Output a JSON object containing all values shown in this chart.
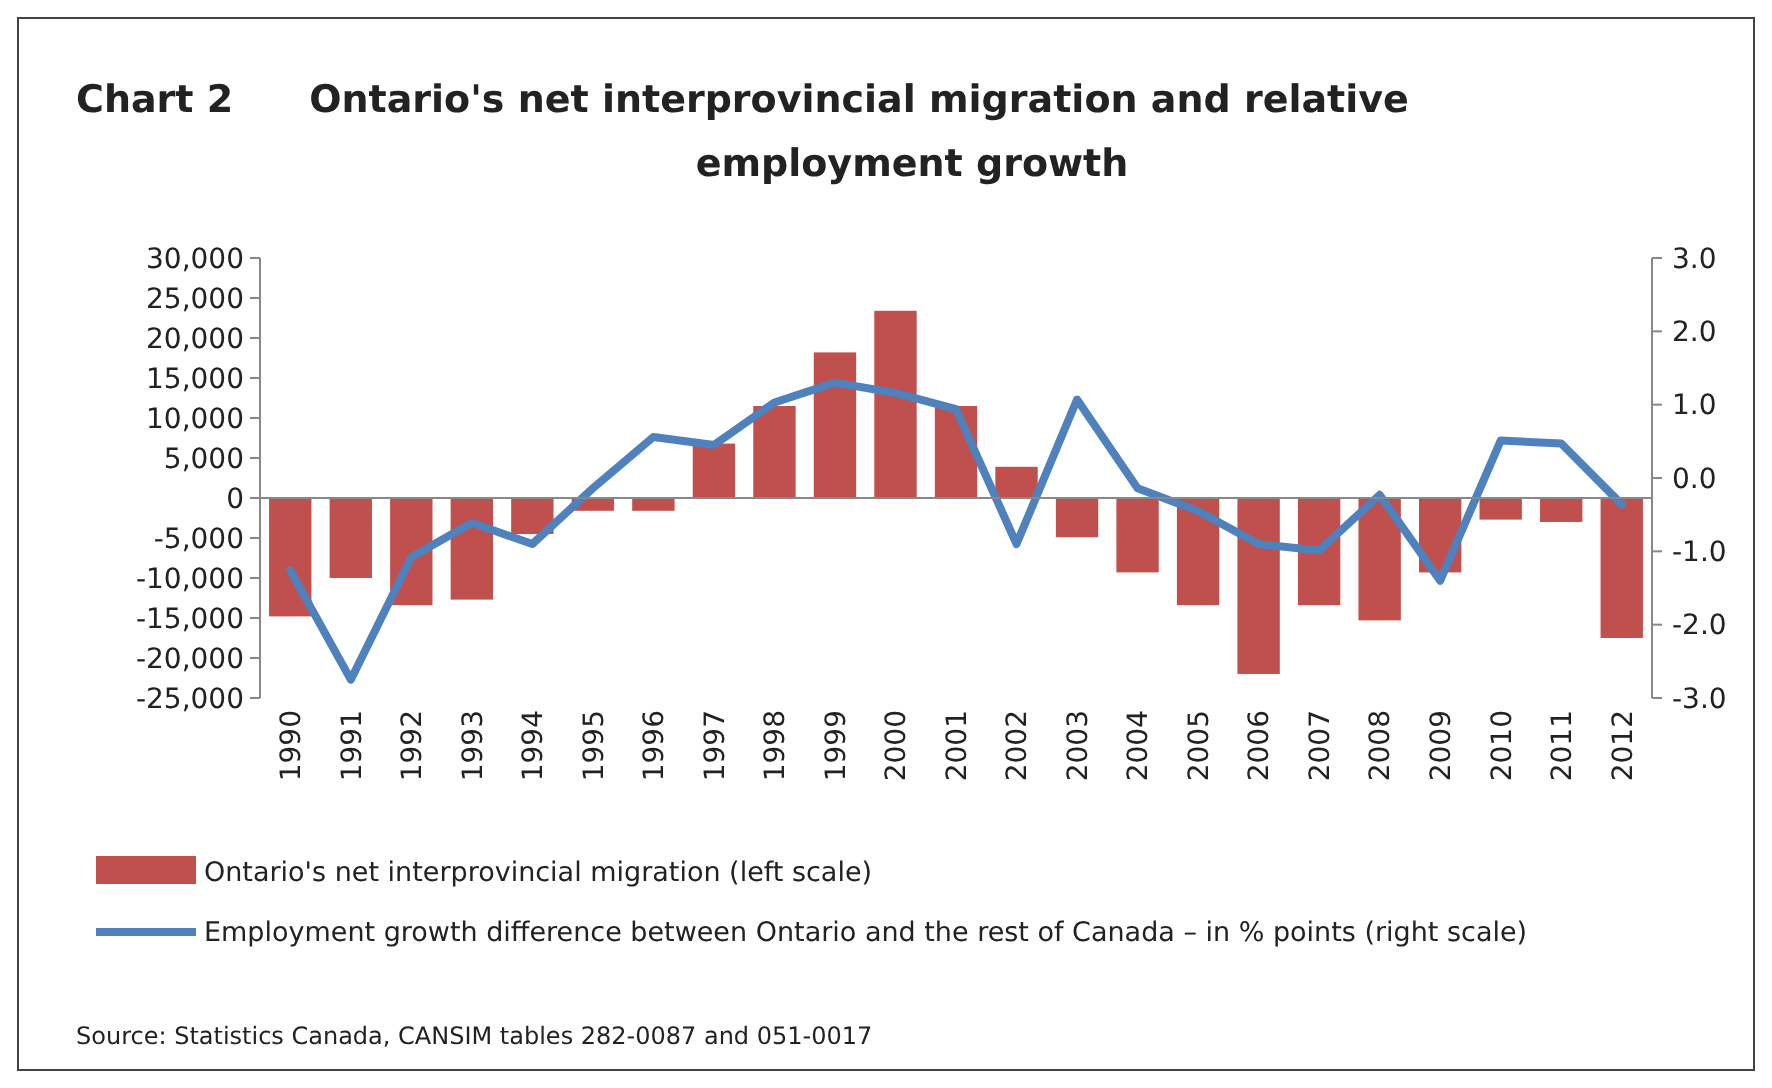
{
  "chart_data": {
    "type": "bar",
    "title": "Chart 2  Ontario's net interprovincial migration and relative employment growth",
    "categories": [
      "1990",
      "1991",
      "1992",
      "1993",
      "1994",
      "1995",
      "1996",
      "1997",
      "1998",
      "1999",
      "2000",
      "2001",
      "2002",
      "2003",
      "2004",
      "2005",
      "2006",
      "2007",
      "2008",
      "2009",
      "2010",
      "2011",
      "2012"
    ],
    "series": [
      {
        "name": "Ontario's net interprovincial migration (left scale)",
        "color": "#c0504d",
        "values": [
          -14800,
          -10000,
          -13400,
          -12700,
          -4500,
          -1600,
          -1600,
          6800,
          11500,
          18200,
          23400,
          11500,
          3900,
          -4900,
          -9300,
          -13400,
          -22000,
          -13400,
          -15300,
          -9300,
          -2700,
          -3000,
          -17500
        ]
      },
      {
        "name": "Employment growth difference between Ontario and the rest of Canada – in % points (right scale)",
        "type": "line",
        "axis": "y2",
        "color": "#4f81bd",
        "values": [
          -1.26,
          -2.75,
          -1.08,
          -0.61,
          -0.9,
          -0.14,
          0.56,
          0.45,
          1.03,
          1.3,
          1.16,
          0.94,
          -0.9,
          1.07,
          -0.14,
          -0.45,
          -0.9,
          -0.99,
          -0.23,
          -1.4,
          0.51,
          0.47,
          -0.36
        ]
      }
    ],
    "ylim": [
      -25000,
      30000
    ],
    "yticks": [
      {
        "value": -25000,
        "label": "-25,000"
      },
      {
        "value": -20000,
        "label": "-20,000"
      },
      {
        "value": -15000,
        "label": "-15,000"
      },
      {
        "value": -10000,
        "label": "-10,000"
      },
      {
        "value": -5000,
        "label": "-5,000"
      },
      0,
      {
        "value": 5000,
        "label": "5,000"
      },
      {
        "value": 10000,
        "label": "10,000"
      },
      {
        "value": 15000,
        "label": "15,000"
      },
      {
        "value": 20000,
        "label": "20,000"
      },
      {
        "value": 25000,
        "label": "25,000"
      },
      {
        "value": 30000,
        "label": "30,000"
      }
    ],
    "y2lim": [
      -3,
      3
    ],
    "y2ticks": [
      {
        "value": -3,
        "label": "-3.0"
      },
      {
        "value": -2,
        "label": "-2.0"
      },
      {
        "value": -1,
        "label": "-1.0"
      },
      {
        "value": 0,
        "label": "0.0"
      },
      {
        "value": 1,
        "label": "1.0"
      },
      {
        "value": 2,
        "label": "2.0"
      },
      {
        "value": 3,
        "label": "3.0"
      }
    ],
    "legend": "bottom",
    "annotations": [
      "Source: Statistics Canada, CANSIM tables 282-0087 and 051-0017"
    ]
  }
}
